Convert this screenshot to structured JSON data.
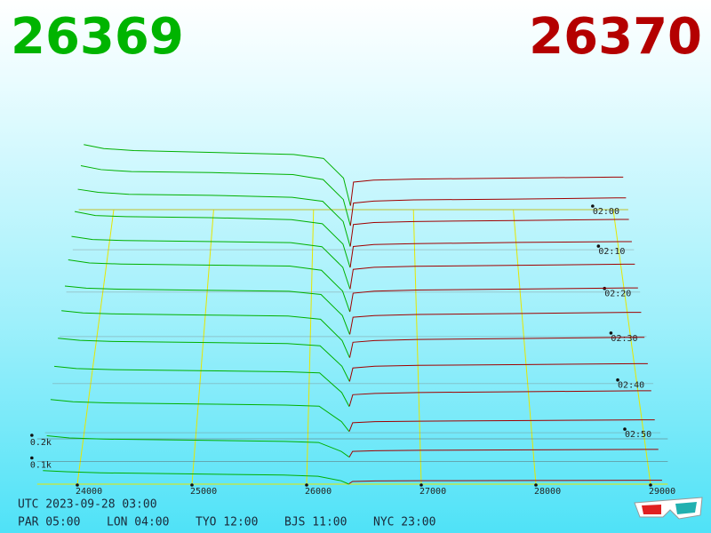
{
  "chart_data": {
    "type": "depth3d",
    "bid_price": 26369,
    "ask_price": 26370,
    "bid_color": "#00b000",
    "ask_color": "#a00000",
    "xlim": [
      23650,
      29150
    ],
    "xticks": [
      24000,
      25000,
      26000,
      27000,
      28000,
      29000
    ],
    "time_ticks": [
      "02:00",
      "02:10",
      "02:20",
      "02:30",
      "02:40",
      "02:50"
    ],
    "time_range": [
      "02:00",
      "03:00"
    ],
    "zticks": [
      {
        "value": 100,
        "label": "0.1k"
      },
      {
        "value": 200,
        "label": "0.2k"
      }
    ],
    "bid_prices": [
      23700,
      23900,
      24200,
      25000,
      25800,
      26100,
      26300,
      26369
    ],
    "ask_prices": [
      26370,
      26400,
      26600,
      27000,
      28000,
      29000,
      29100
    ],
    "slices": [
      {
        "time": "02:00",
        "bids": [
          330,
          310,
          300,
          290,
          280,
          260,
          160,
          20
        ],
        "asks": [
          20,
          140,
          150,
          155,
          160,
          165,
          165
        ]
      },
      {
        "time": "02:05",
        "bids": [
          320,
          300,
          290,
          285,
          275,
          250,
          150,
          20
        ],
        "asks": [
          18,
          132,
          142,
          148,
          152,
          158,
          158
        ]
      },
      {
        "time": "02:10",
        "bids": [
          300,
          285,
          275,
          270,
          260,
          240,
          140,
          15
        ],
        "asks": [
          16,
          125,
          135,
          140,
          145,
          150,
          150
        ]
      },
      {
        "time": "02:15",
        "bids": [
          290,
          270,
          265,
          260,
          250,
          230,
          130,
          15
        ],
        "asks": [
          15,
          118,
          128,
          132,
          138,
          142,
          142
        ]
      },
      {
        "time": "02:20",
        "bids": [
          270,
          255,
          250,
          245,
          240,
          220,
          120,
          15
        ],
        "asks": [
          14,
          110,
          120,
          125,
          130,
          135,
          135
        ]
      },
      {
        "time": "02:25",
        "bids": [
          260,
          245,
          240,
          235,
          230,
          210,
          110,
          10
        ],
        "asks": [
          12,
          100,
          110,
          115,
          120,
          125,
          125
        ]
      },
      {
        "time": "02:30",
        "bids": [
          240,
          230,
          225,
          220,
          215,
          200,
          100,
          10
        ],
        "asks": [
          11,
          92,
          100,
          105,
          110,
          115,
          115
        ]
      },
      {
        "time": "02:35",
        "bids": [
          230,
          220,
          215,
          210,
          205,
          190,
          90,
          10
        ],
        "asks": [
          10,
          82,
          90,
          95,
          100,
          105,
          105
        ]
      },
      {
        "time": "02:40",
        "bids": [
          210,
          200,
          195,
          190,
          185,
          175,
          80,
          10
        ],
        "asks": [
          9,
          72,
          80,
          84,
          88,
          92,
          92
        ]
      },
      {
        "time": "02:45",
        "bids": [
          190,
          180,
          175,
          170,
          165,
          160,
          70,
          5
        ],
        "asks": [
          8,
          60,
          66,
          70,
          74,
          78,
          78
        ]
      },
      {
        "time": "02:50",
        "bids": [
          150,
          140,
          135,
          130,
          125,
          120,
          50,
          5
        ],
        "asks": [
          6,
          45,
          50,
          52,
          55,
          58,
          58
        ]
      },
      {
        "time": "02:55",
        "bids": [
          100,
          90,
          85,
          80,
          75,
          70,
          30,
          5
        ],
        "asks": [
          4,
          30,
          33,
          35,
          37,
          39,
          39
        ]
      },
      {
        "time": "03:00",
        "bids": [
          60,
          55,
          50,
          45,
          40,
          35,
          15,
          0
        ],
        "asks": [
          2,
          12,
          14,
          15,
          16,
          17,
          17
        ]
      }
    ]
  },
  "clock": "UTC 2023-09-28 03:00",
  "zones": [
    "PAR 05:00",
    "LON 04:00",
    "TYO 12:00",
    "BJS 11:00",
    "NYC 23:00"
  ]
}
